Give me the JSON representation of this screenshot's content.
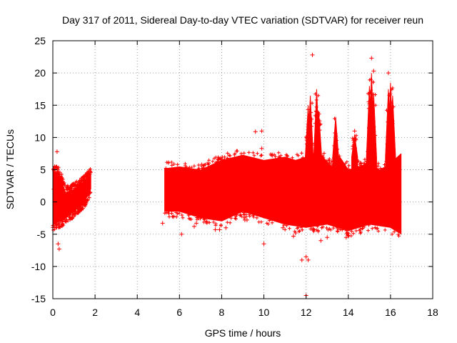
{
  "chart_data": {
    "type": "scatter",
    "title": "Day 317 of 2011, Sidereal Day-to-day VTEC variation (SDTVAR) for receiver reun",
    "xlabel": "GPS time / hours",
    "ylabel": "SDTVAR / TECUs",
    "xlim": [
      0,
      18
    ],
    "ylim": [
      -15,
      25
    ],
    "xticks": [
      0,
      2,
      4,
      6,
      8,
      10,
      12,
      14,
      16,
      18
    ],
    "yticks": [
      -15,
      -10,
      -5,
      0,
      5,
      10,
      15,
      20,
      25
    ],
    "grid": true,
    "marker": "+",
    "color": "#ff0000",
    "series": [
      {
        "name": "SDTVAR",
        "envelope_upper": [
          [
            0.0,
            4.8
          ],
          [
            0.3,
            4.5
          ],
          [
            0.6,
            1.5
          ],
          [
            1.0,
            2.0
          ],
          [
            1.4,
            3.0
          ],
          [
            1.8,
            4.3
          ],
          [
            5.3,
            5.2
          ],
          [
            6.0,
            5.5
          ],
          [
            7.0,
            5.0
          ],
          [
            8.0,
            6.5
          ],
          [
            9.0,
            7.3
          ],
          [
            10.0,
            6.5
          ],
          [
            11.0,
            7.0
          ],
          [
            11.5,
            6.5
          ],
          [
            12.0,
            7.0
          ],
          [
            12.4,
            5.5
          ],
          [
            12.8,
            7.0
          ],
          [
            13.2,
            5.5
          ],
          [
            13.6,
            7.0
          ],
          [
            14.0,
            5.0
          ],
          [
            14.5,
            5.5
          ],
          [
            15.0,
            6.0
          ],
          [
            15.5,
            5.0
          ],
          [
            16.0,
            6.0
          ],
          [
            16.5,
            7.5
          ]
        ],
        "envelope_lower": [
          [
            0.0,
            -3.5
          ],
          [
            0.5,
            -2.8
          ],
          [
            1.0,
            -1.5
          ],
          [
            1.5,
            0.0
          ],
          [
            1.8,
            2.0
          ],
          [
            5.3,
            -1.5
          ],
          [
            6.0,
            -1.5
          ],
          [
            7.0,
            -2.5
          ],
          [
            8.0,
            -3.0
          ],
          [
            9.0,
            -1.5
          ],
          [
            10.0,
            -2.5
          ],
          [
            11.0,
            -3.5
          ],
          [
            12.0,
            -4.0
          ],
          [
            13.0,
            -3.5
          ],
          [
            14.0,
            -4.5
          ],
          [
            15.0,
            -3.5
          ],
          [
            16.0,
            -4.0
          ],
          [
            16.5,
            -5.0
          ]
        ],
        "peaks": [
          [
            12.1,
            15.0
          ],
          [
            12.2,
            16.5
          ],
          [
            12.5,
            17.5
          ],
          [
            12.6,
            14.0
          ],
          [
            13.4,
            13.2
          ],
          [
            14.3,
            10.5
          ],
          [
            15.0,
            18.0
          ],
          [
            15.1,
            20.0
          ],
          [
            15.2,
            17.0
          ],
          [
            15.9,
            17.5
          ],
          [
            16.0,
            18.5
          ],
          [
            16.1,
            16.5
          ]
        ],
        "outliers": [
          [
            0.2,
            7.8
          ],
          [
            0.3,
            -7.3
          ],
          [
            0.25,
            -6.5
          ],
          [
            0.05,
            2.0
          ],
          [
            0.4,
            0.5
          ],
          [
            0.35,
            2.5
          ],
          [
            0.45,
            -2.8
          ],
          [
            0.15,
            3.8
          ],
          [
            5.2,
            -3.3
          ],
          [
            5.5,
            -1.8
          ],
          [
            6.1,
            -5.0
          ],
          [
            6.7,
            -3.8
          ],
          [
            6.8,
            -3.3
          ],
          [
            7.3,
            -3.0
          ],
          [
            7.7,
            -4.3
          ],
          [
            7.9,
            -4.3
          ],
          [
            8.2,
            -4.0
          ],
          [
            8.7,
            -2.0
          ],
          [
            9.1,
            -2.8
          ],
          [
            9.2,
            -2.8
          ],
          [
            9.6,
            10.9
          ],
          [
            9.9,
            11.0
          ],
          [
            9.9,
            8.3
          ],
          [
            9.8,
            6.3
          ],
          [
            10.0,
            -6.5
          ],
          [
            10.4,
            7.2
          ],
          [
            10.9,
            -4.0
          ],
          [
            11.4,
            -5.3
          ],
          [
            11.5,
            -4.8
          ],
          [
            11.8,
            -9.0
          ],
          [
            12.0,
            -8.5
          ],
          [
            12.1,
            -9.0
          ],
          [
            12.0,
            -14.5
          ],
          [
            12.3,
            22.8
          ],
          [
            12.7,
            -6.0
          ],
          [
            13.0,
            -5.5
          ],
          [
            13.5,
            -4.0
          ],
          [
            13.9,
            -5.5
          ],
          [
            14.3,
            11.0
          ],
          [
            15.1,
            22.3
          ],
          [
            15.2,
            20.3
          ],
          [
            15.8,
            -3.3
          ],
          [
            15.9,
            20.0
          ],
          [
            16.2,
            -4.0
          ]
        ]
      }
    ]
  }
}
